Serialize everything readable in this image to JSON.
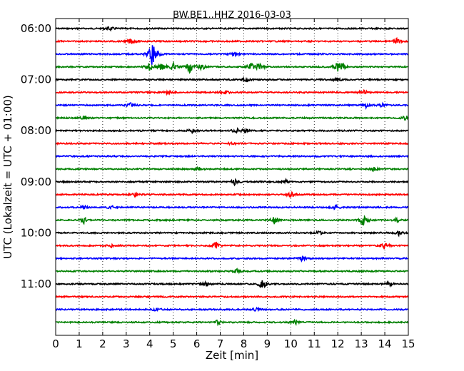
{
  "chart_data": {
    "type": "line",
    "title": "BW.BE1..HHZ 2016-03-03",
    "xlabel": "Zeit  [min]",
    "ylabel": "UTC (Lokalzeit = UTC + 01:00)",
    "xlim": [
      0,
      15
    ],
    "x_ticks": [
      0,
      1,
      2,
      3,
      4,
      5,
      6,
      7,
      8,
      9,
      10,
      11,
      12,
      13,
      14,
      15
    ],
    "x_tick_labels": [
      "0",
      "1",
      "2",
      "3",
      "4",
      "5",
      "6",
      "7",
      "8",
      "9",
      "10",
      "11",
      "12",
      "13",
      "14",
      "15"
    ],
    "y_tick_labels": [
      "06:00",
      "07:00",
      "08:00",
      "09:00",
      "10:00",
      "11:00"
    ],
    "grid": true,
    "trace_colors": [
      "#000000",
      "#ff0000",
      "#0000ff",
      "#008000"
    ],
    "series": [
      {
        "start": "06:00",
        "events": [
          [
            2.3,
            3
          ]
        ]
      },
      {
        "start": "06:15",
        "events": [
          [
            3.2,
            4
          ],
          [
            14.5,
            4
          ]
        ]
      },
      {
        "start": "06:30",
        "events": [
          [
            4.1,
            18
          ],
          [
            4.3,
            5
          ],
          [
            7.6,
            3
          ]
        ]
      },
      {
        "start": "06:45",
        "events": [
          [
            4.0,
            7
          ],
          [
            4.5,
            6
          ],
          [
            5.0,
            6
          ],
          [
            5.7,
            8
          ],
          [
            6.2,
            6
          ],
          [
            8.3,
            6
          ],
          [
            8.7,
            6
          ],
          [
            12.0,
            7
          ],
          [
            12.2,
            4
          ]
        ]
      },
      {
        "start": "07:00",
        "events": [
          [
            8.1,
            3
          ],
          [
            12.0,
            3
          ]
        ]
      },
      {
        "start": "07:15",
        "events": [
          [
            4.8,
            3
          ],
          [
            7.2,
            3
          ],
          [
            13.1,
            4
          ]
        ]
      },
      {
        "start": "07:30",
        "events": [
          [
            3.2,
            4
          ],
          [
            13.2,
            3
          ],
          [
            13.9,
            3
          ]
        ]
      },
      {
        "start": "07:45",
        "events": [
          [
            1.2,
            3
          ],
          [
            14.9,
            4
          ]
        ]
      },
      {
        "start": "08:00",
        "events": [
          [
            5.8,
            3
          ],
          [
            7.7,
            4
          ],
          [
            8.1,
            3
          ]
        ]
      },
      {
        "start": "08:15",
        "events": [
          [
            7.5,
            2
          ]
        ]
      },
      {
        "start": "08:30",
        "events": []
      },
      {
        "start": "08:45",
        "events": [
          [
            6.1,
            3
          ],
          [
            13.5,
            3
          ]
        ]
      },
      {
        "start": "09:00",
        "events": [
          [
            7.6,
            4
          ],
          [
            9.8,
            3
          ]
        ]
      },
      {
        "start": "09:15",
        "events": [
          [
            3.4,
            3
          ],
          [
            10.0,
            4
          ]
        ]
      },
      {
        "start": "09:30",
        "events": [
          [
            1.2,
            3
          ],
          [
            2.4,
            3
          ],
          [
            11.9,
            3
          ]
        ]
      },
      {
        "start": "09:45",
        "events": [
          [
            1.2,
            4
          ],
          [
            9.3,
            5
          ],
          [
            13.1,
            9
          ],
          [
            14.5,
            3
          ]
        ]
      },
      {
        "start": "10:00",
        "events": [
          [
            11.2,
            3
          ],
          [
            14.6,
            4
          ]
        ]
      },
      {
        "start": "10:15",
        "events": [
          [
            2.4,
            3
          ],
          [
            6.8,
            5
          ],
          [
            14.0,
            6
          ]
        ]
      },
      {
        "start": "10:30",
        "events": [
          [
            10.5,
            4
          ]
        ]
      },
      {
        "start": "10:45",
        "events": [
          [
            7.7,
            3
          ]
        ]
      },
      {
        "start": "11:00",
        "events": [
          [
            8.8,
            9
          ],
          [
            6.4,
            3
          ],
          [
            14.2,
            3
          ]
        ]
      },
      {
        "start": "11:15",
        "events": []
      },
      {
        "start": "11:30",
        "events": [
          [
            4.3,
            3
          ],
          [
            8.5,
            3
          ]
        ]
      },
      {
        "start": "11:45",
        "events": [
          [
            6.9,
            3
          ],
          [
            10.2,
            3
          ]
        ]
      }
    ]
  }
}
